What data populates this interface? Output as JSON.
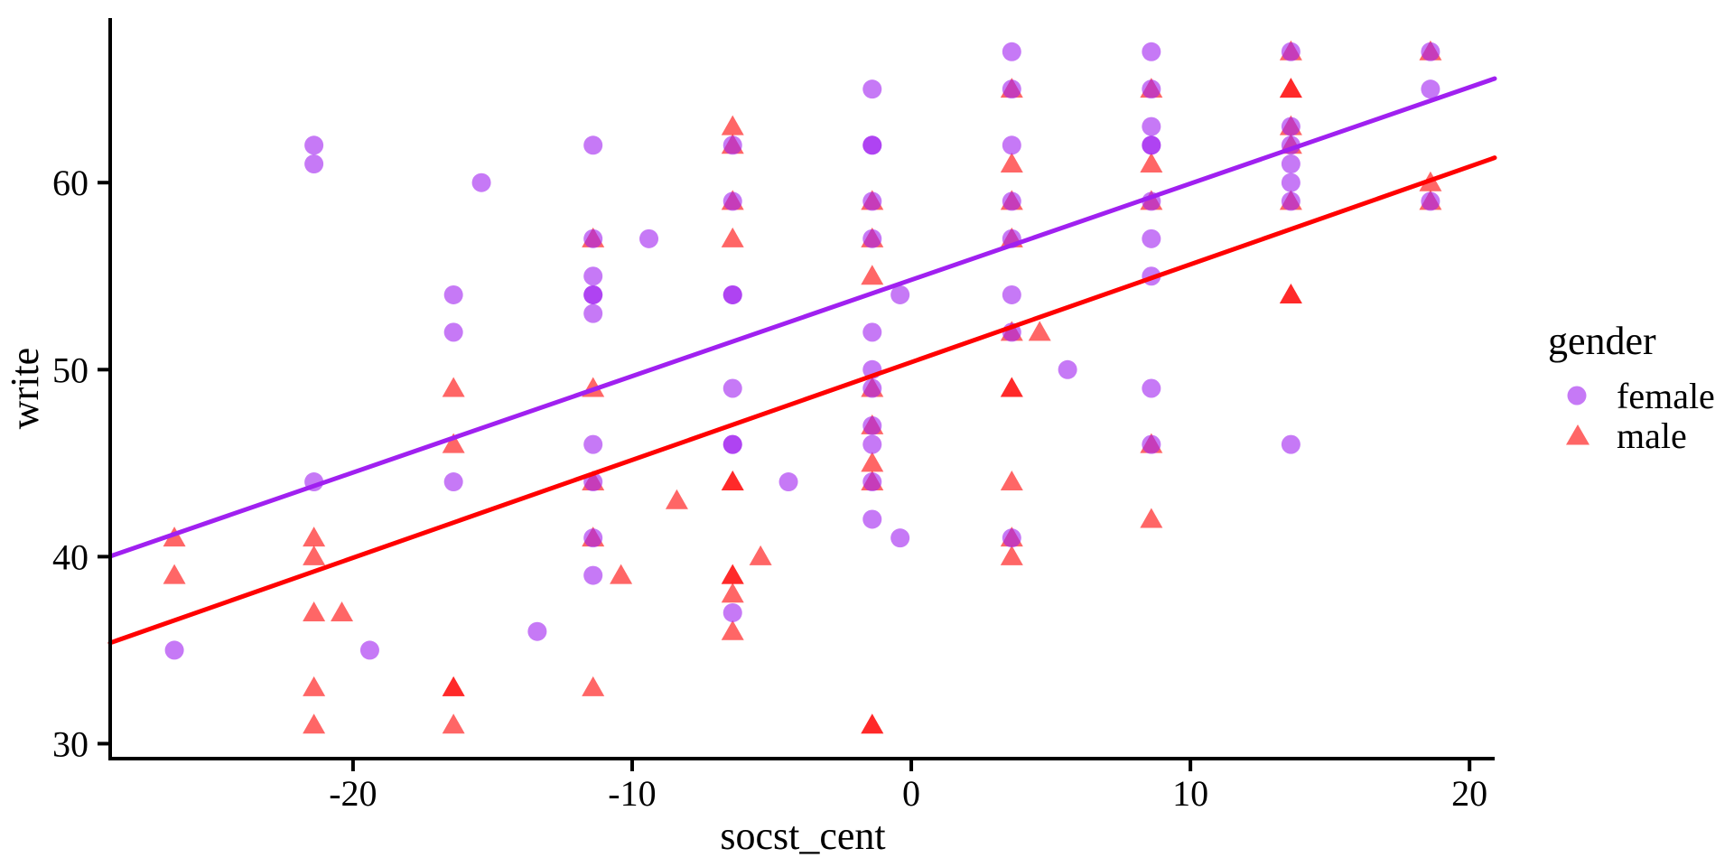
{
  "chart_data": {
    "type": "scatter",
    "title": "",
    "xlabel": "socst_cent",
    "ylabel": "write",
    "xlim": [
      -28.7,
      20.9
    ],
    "ylim": [
      29.2,
      68.8
    ],
    "x_ticks": [
      -20,
      -10,
      0,
      10,
      20
    ],
    "y_ticks": [
      30,
      40,
      50,
      60
    ],
    "grid": "off",
    "point_alpha": 0.6,
    "legend": {
      "title": "gender",
      "position": "right",
      "items": [
        {
          "label": "female",
          "shape": "circle",
          "color": "#A020F0"
        },
        {
          "label": "male",
          "shape": "triangle",
          "color": "#FF0000"
        }
      ]
    },
    "series": [
      {
        "name": "female",
        "shape": "circle",
        "color": "#A020F0",
        "points": [
          [
            -26.4,
            35
          ],
          [
            -21.4,
            62
          ],
          [
            -21.4,
            61
          ],
          [
            -21.4,
            44
          ],
          [
            -19.4,
            35
          ],
          [
            -16.4,
            54
          ],
          [
            -16.4,
            52
          ],
          [
            -16.4,
            44
          ],
          [
            -15.4,
            60
          ],
          [
            -13.4,
            36
          ],
          [
            -11.4,
            62
          ],
          [
            -11.4,
            57
          ],
          [
            -11.4,
            55
          ],
          [
            -11.4,
            54
          ],
          [
            -11.4,
            54
          ],
          [
            -11.4,
            53
          ],
          [
            -11.4,
            46
          ],
          [
            -11.4,
            44
          ],
          [
            -11.4,
            41
          ],
          [
            -11.4,
            39
          ],
          [
            -9.4,
            57
          ],
          [
            -6.4,
            62
          ],
          [
            -6.4,
            59
          ],
          [
            -6.4,
            54
          ],
          [
            -6.4,
            54
          ],
          [
            -6.4,
            49
          ],
          [
            -6.4,
            46
          ],
          [
            -6.4,
            46
          ],
          [
            -6.4,
            37
          ],
          [
            -4.4,
            44
          ],
          [
            -1.4,
            65
          ],
          [
            -1.4,
            62
          ],
          [
            -1.4,
            62
          ],
          [
            -1.4,
            59
          ],
          [
            -1.4,
            57
          ],
          [
            -1.4,
            52
          ],
          [
            -1.4,
            50
          ],
          [
            -1.4,
            49
          ],
          [
            -1.4,
            47
          ],
          [
            -1.4,
            46
          ],
          [
            -1.4,
            44
          ],
          [
            -1.4,
            42
          ],
          [
            -0.4,
            54
          ],
          [
            -0.4,
            41
          ],
          [
            3.6,
            67
          ],
          [
            3.6,
            65
          ],
          [
            3.6,
            62
          ],
          [
            3.6,
            59
          ],
          [
            3.6,
            57
          ],
          [
            3.6,
            54
          ],
          [
            3.6,
            52
          ],
          [
            3.6,
            41
          ],
          [
            5.6,
            50
          ],
          [
            8.6,
            67
          ],
          [
            8.6,
            65
          ],
          [
            8.6,
            63
          ],
          [
            8.6,
            62
          ],
          [
            8.6,
            62
          ],
          [
            8.6,
            59
          ],
          [
            8.6,
            57
          ],
          [
            8.6,
            55
          ],
          [
            8.6,
            49
          ],
          [
            8.6,
            46
          ],
          [
            13.6,
            67
          ],
          [
            13.6,
            63
          ],
          [
            13.6,
            62
          ],
          [
            13.6,
            61
          ],
          [
            13.6,
            60
          ],
          [
            13.6,
            59
          ],
          [
            13.6,
            46
          ],
          [
            18.6,
            67
          ],
          [
            18.6,
            65
          ],
          [
            18.6,
            59
          ]
        ]
      },
      {
        "name": "male",
        "shape": "triangle",
        "color": "#FF0000",
        "points": [
          [
            -26.4,
            41
          ],
          [
            -26.4,
            39
          ],
          [
            -21.4,
            41
          ],
          [
            -21.4,
            40
          ],
          [
            -21.4,
            37
          ],
          [
            -21.4,
            33
          ],
          [
            -21.4,
            31
          ],
          [
            -20.4,
            37
          ],
          [
            -16.4,
            49
          ],
          [
            -16.4,
            46
          ],
          [
            -16.4,
            33
          ],
          [
            -16.4,
            33
          ],
          [
            -16.4,
            31
          ],
          [
            -11.4,
            57
          ],
          [
            -11.4,
            49
          ],
          [
            -11.4,
            44
          ],
          [
            -11.4,
            41
          ],
          [
            -11.4,
            33
          ],
          [
            -10.4,
            39
          ],
          [
            -8.4,
            43
          ],
          [
            -6.4,
            63
          ],
          [
            -6.4,
            62
          ],
          [
            -6.4,
            59
          ],
          [
            -6.4,
            57
          ],
          [
            -6.4,
            44
          ],
          [
            -6.4,
            44
          ],
          [
            -6.4,
            39
          ],
          [
            -6.4,
            39
          ],
          [
            -6.4,
            38
          ],
          [
            -6.4,
            36
          ],
          [
            -5.4,
            40
          ],
          [
            -1.4,
            59
          ],
          [
            -1.4,
            57
          ],
          [
            -1.4,
            55
          ],
          [
            -1.4,
            49
          ],
          [
            -1.4,
            47
          ],
          [
            -1.4,
            45
          ],
          [
            -1.4,
            44
          ],
          [
            -1.4,
            31
          ],
          [
            -1.4,
            31
          ],
          [
            3.6,
            65
          ],
          [
            3.6,
            61
          ],
          [
            3.6,
            59
          ],
          [
            3.6,
            57
          ],
          [
            3.6,
            52
          ],
          [
            3.6,
            49
          ],
          [
            3.6,
            49
          ],
          [
            3.6,
            44
          ],
          [
            3.6,
            41
          ],
          [
            3.6,
            40
          ],
          [
            4.6,
            52
          ],
          [
            8.6,
            65
          ],
          [
            8.6,
            61
          ],
          [
            8.6,
            59
          ],
          [
            8.6,
            46
          ],
          [
            8.6,
            42
          ],
          [
            13.6,
            67
          ],
          [
            13.6,
            65
          ],
          [
            13.6,
            65
          ],
          [
            13.6,
            63
          ],
          [
            13.6,
            62
          ],
          [
            13.6,
            59
          ],
          [
            13.6,
            54
          ],
          [
            13.6,
            54
          ],
          [
            18.6,
            67
          ],
          [
            18.6,
            60
          ],
          [
            18.6,
            59
          ]
        ]
      }
    ],
    "regression_lines": [
      {
        "name": "female",
        "color": "#A020F0",
        "slope": 0.515,
        "intercept": 54.8
      },
      {
        "name": "male",
        "color": "#FF0000",
        "slope": 0.523,
        "intercept": 50.4
      }
    ]
  }
}
